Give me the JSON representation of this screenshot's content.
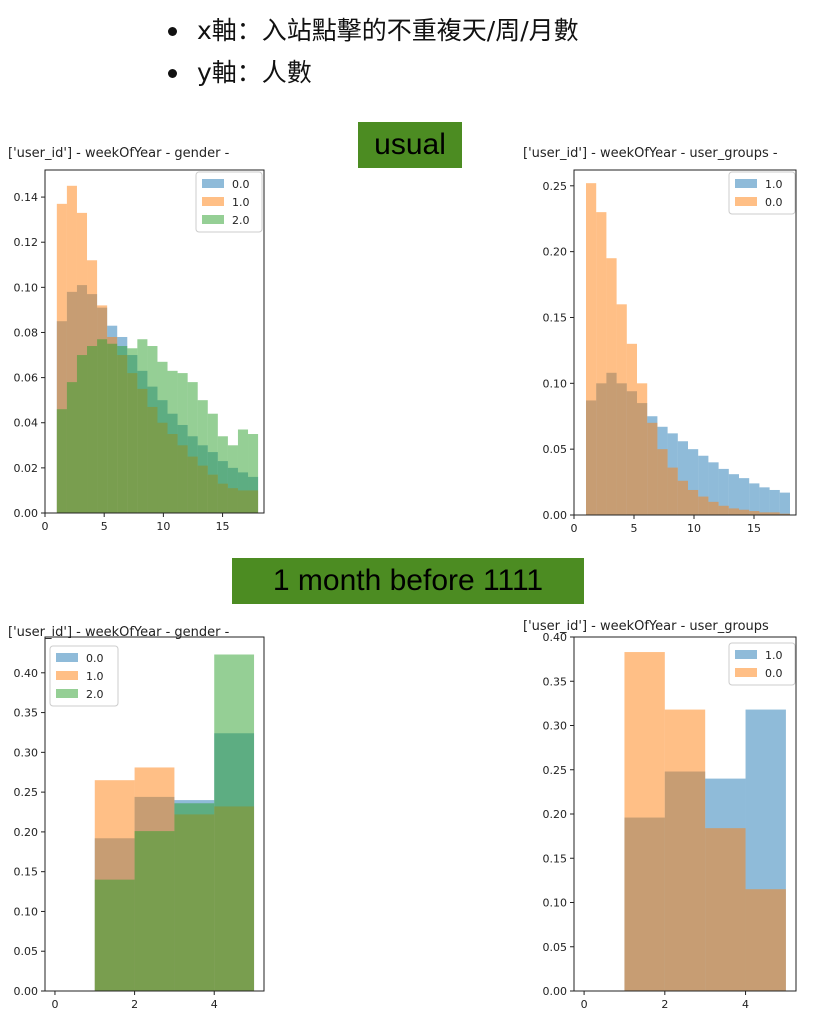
{
  "header": {
    "bullets": [
      "x軸：入站點擊的不重複天/周/月數",
      "y軸：人數"
    ]
  },
  "sections": {
    "usual_label": "usual",
    "before_label": "1 month before 1111"
  },
  "colors": {
    "blue": "#1f77b4",
    "orange": "#ff7f0e",
    "green": "#2ca02c",
    "banner": "#4c8c22"
  },
  "chart_data": [
    {
      "type": "histogram",
      "title": "['user_id'] - weekOfYear - gender -",
      "bin_edges": [
        1,
        1.85,
        2.7,
        3.55,
        4.4,
        5.25,
        6.1,
        6.95,
        7.8,
        8.65,
        9.5,
        10.35,
        11.2,
        12.05,
        12.9,
        13.75,
        14.6,
        15.45,
        16.3,
        17.15,
        18
      ],
      "series": [
        {
          "name": "0.0",
          "color": "blue",
          "values": [
            0.085,
            0.098,
            0.101,
            0.097,
            0.091,
            0.083,
            0.078,
            0.07,
            0.063,
            0.056,
            0.05,
            0.044,
            0.039,
            0.034,
            0.03,
            0.027,
            0.023,
            0.02,
            0.018,
            0.016
          ]
        },
        {
          "name": "1.0",
          "color": "orange",
          "values": [
            0.137,
            0.145,
            0.133,
            0.112,
            0.092,
            0.078,
            0.07,
            0.062,
            0.055,
            0.047,
            0.04,
            0.035,
            0.03,
            0.025,
            0.021,
            0.017,
            0.013,
            0.011,
            0.01,
            0.01
          ]
        },
        {
          "name": "2.0",
          "color": "green",
          "values": [
            0.046,
            0.058,
            0.07,
            0.074,
            0.077,
            0.075,
            0.074,
            0.073,
            0.077,
            0.074,
            0.067,
            0.063,
            0.062,
            0.058,
            0.05,
            0.044,
            0.034,
            0.03,
            0.037,
            0.035
          ]
        }
      ],
      "xlim": [
        0,
        18.5
      ],
      "ylim": [
        0,
        0.152
      ],
      "xticks": [
        0,
        5,
        10,
        15
      ],
      "yticks": [
        0.0,
        0.02,
        0.04,
        0.06,
        0.08,
        0.1,
        0.12,
        0.14
      ],
      "legend": "top-right"
    },
    {
      "type": "histogram",
      "title": "['user_id'] - weekOfYear - user_groups -",
      "bin_edges": [
        1,
        1.85,
        2.7,
        3.55,
        4.4,
        5.25,
        6.1,
        6.95,
        7.8,
        8.65,
        9.5,
        10.35,
        11.2,
        12.05,
        12.9,
        13.75,
        14.6,
        15.45,
        16.3,
        17.15,
        18
      ],
      "series": [
        {
          "name": "1.0",
          "color": "blue",
          "values": [
            0.087,
            0.1,
            0.108,
            0.1,
            0.094,
            0.085,
            0.075,
            0.067,
            0.062,
            0.056,
            0.05,
            0.045,
            0.04,
            0.035,
            0.031,
            0.028,
            0.024,
            0.021,
            0.019,
            0.017
          ]
        },
        {
          "name": "0.0",
          "color": "orange",
          "values": [
            0.252,
            0.23,
            0.195,
            0.16,
            0.13,
            0.1,
            0.07,
            0.05,
            0.036,
            0.026,
            0.019,
            0.014,
            0.01,
            0.007,
            0.005,
            0.004,
            0.003,
            0.002,
            0.002,
            0.001
          ]
        }
      ],
      "xlim": [
        0,
        18.5
      ],
      "ylim": [
        0,
        0.262
      ],
      "xticks": [
        0,
        5,
        10,
        15
      ],
      "yticks": [
        0.0,
        0.05,
        0.1,
        0.15,
        0.2,
        0.25
      ],
      "legend": "top-right"
    },
    {
      "type": "histogram",
      "title": "['user_id'] - weekOfYear - gender -",
      "bin_edges": [
        1,
        2,
        3,
        4,
        5
      ],
      "series": [
        {
          "name": "0.0",
          "color": "blue",
          "values": [
            0.192,
            0.244,
            0.24,
            0.324
          ]
        },
        {
          "name": "1.0",
          "color": "orange",
          "values": [
            0.265,
            0.281,
            0.222,
            0.232
          ]
        },
        {
          "name": "2.0",
          "color": "green",
          "values": [
            0.14,
            0.201,
            0.236,
            0.423
          ]
        }
      ],
      "xlim": [
        -0.25,
        5.25
      ],
      "ylim": [
        0,
        0.445
      ],
      "xticks": [
        0,
        2,
        4
      ],
      "yticks": [
        0.0,
        0.05,
        0.1,
        0.15,
        0.2,
        0.25,
        0.3,
        0.35,
        0.4
      ],
      "legend": "top-left"
    },
    {
      "type": "histogram",
      "title": "['user_id'] - weekOfYear - user_groups",
      "bin_edges": [
        1,
        2,
        3,
        4,
        5
      ],
      "series": [
        {
          "name": "1.0",
          "color": "blue",
          "values": [
            0.196,
            0.248,
            0.24,
            0.318
          ]
        },
        {
          "name": "0.0",
          "color": "orange",
          "values": [
            0.383,
            0.318,
            0.184,
            0.115
          ]
        }
      ],
      "xlim": [
        -0.25,
        5.25
      ],
      "ylim": [
        0,
        0.4
      ],
      "xticks": [
        0,
        2,
        4
      ],
      "yticks": [
        0.0,
        0.05,
        0.1,
        0.15,
        0.2,
        0.25,
        0.3,
        0.35,
        0.4
      ],
      "legend": "top-right"
    }
  ]
}
